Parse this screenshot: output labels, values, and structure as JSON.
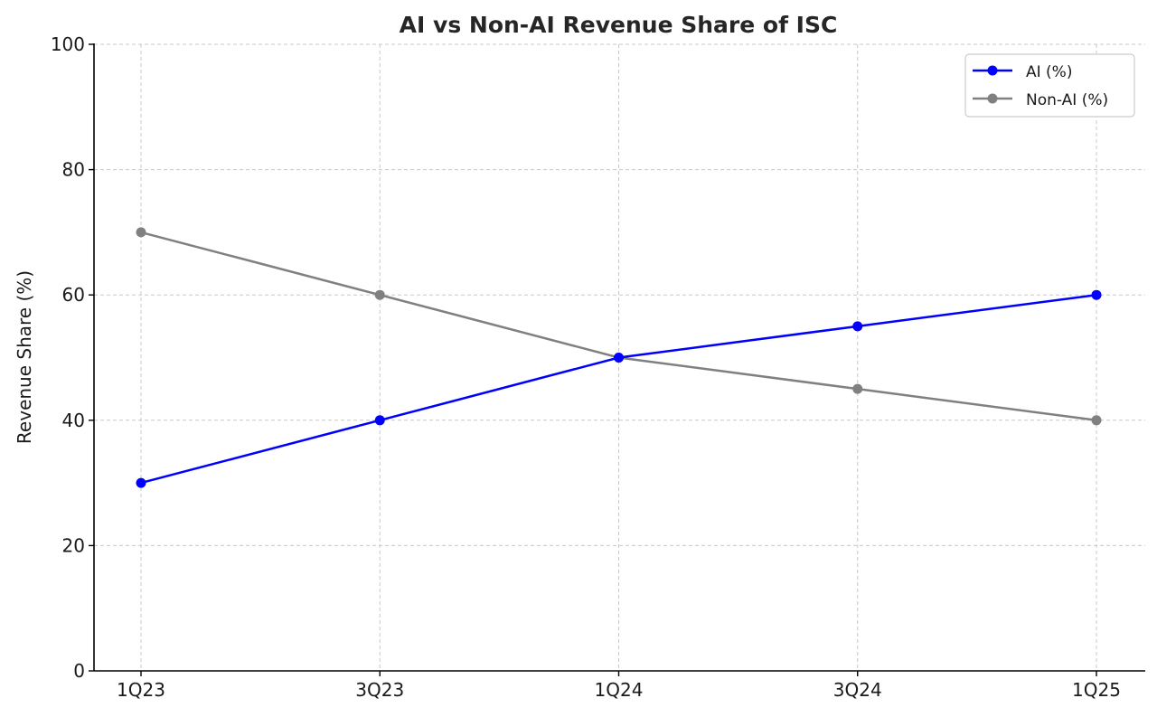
{
  "chart_data": {
    "type": "line",
    "title": "AI vs Non-AI Revenue Share of ISC",
    "xlabel": "",
    "ylabel": "Revenue Share (%)",
    "categories": [
      "1Q23",
      "3Q23",
      "1Q24",
      "3Q24",
      "1Q25"
    ],
    "series": [
      {
        "name": "AI (%)",
        "color": "#0000ff",
        "values": [
          30,
          40,
          50,
          55,
          60
        ]
      },
      {
        "name": "Non-AI (%)",
        "color": "#808080",
        "values": [
          70,
          60,
          50,
          45,
          40
        ]
      }
    ],
    "ylim": [
      0,
      100
    ],
    "yticks": [
      "0",
      "20",
      "40",
      "60",
      "80",
      "100"
    ],
    "grid": true,
    "legend_position": "upper right"
  }
}
